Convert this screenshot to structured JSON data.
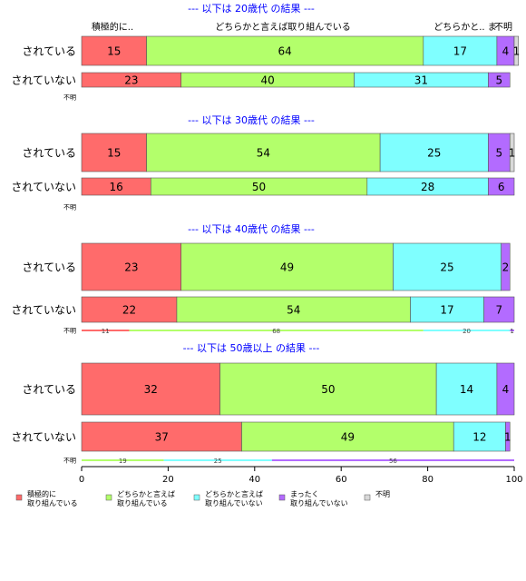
{
  "chart_data": {
    "type": "bar",
    "orientation": "horizontal",
    "stacked": true,
    "xlim": [
      0,
      100
    ],
    "x_ticks": [
      "0",
      "20",
      "40",
      "60",
      "80",
      "100"
    ],
    "series_names": [
      "積極的に\n取り組んでいる",
      "どちらかと言えば\n取り組んでいる",
      "どちらかと言えば\n取り組んでいない",
      "まったく\n取り組んでいない",
      "不明"
    ],
    "colors": [
      "#FF6B6B",
      "#B3FF6B",
      "#7FFFFF",
      "#B36BFF",
      "#D9D9D9"
    ],
    "legend_position": "bottom",
    "header_labels": [
      "積極的に..",
      "どちらかと言えば取り組んでいる",
      "どちらかと.. ま",
      "不明"
    ],
    "panels": [
      {
        "title": "--- 以下は 20歳代 の結果 ---",
        "rows": [
          {
            "label": "されている",
            "values": [
              15,
              64,
              17,
              4,
              1
            ]
          },
          {
            "label": "されていない",
            "values": [
              23,
              40,
              31,
              5,
              0
            ]
          },
          {
            "label": "不明",
            "values": []
          }
        ]
      },
      {
        "title": "--- 以下は 30歳代 の結果 ---",
        "rows": [
          {
            "label": "されている",
            "values": [
              15,
              54,
              25,
              5,
              1
            ]
          },
          {
            "label": "されていない",
            "values": [
              16,
              50,
              28,
              6,
              0
            ]
          },
          {
            "label": "不明",
            "values": []
          }
        ]
      },
      {
        "title": "--- 以下は 40歳代 の結果 ---",
        "rows": [
          {
            "label": "されている",
            "values": [
              23,
              49,
              25,
              2,
              0
            ]
          },
          {
            "label": "されていない",
            "values": [
              22,
              54,
              17,
              7,
              0
            ]
          },
          {
            "label": "不明",
            "values": [
              11,
              68,
              20,
              1,
              0
            ]
          }
        ]
      },
      {
        "title": "--- 以下は 50歳以上 の結果 ---",
        "rows": [
          {
            "label": "されている",
            "values": [
              32,
              50,
              14,
              4,
              0
            ]
          },
          {
            "label": "されていない",
            "values": [
              37,
              49,
              12,
              1,
              0
            ]
          },
          {
            "label": "不明",
            "values": [
              0,
              19,
              25,
              56,
              0
            ]
          }
        ]
      }
    ]
  }
}
